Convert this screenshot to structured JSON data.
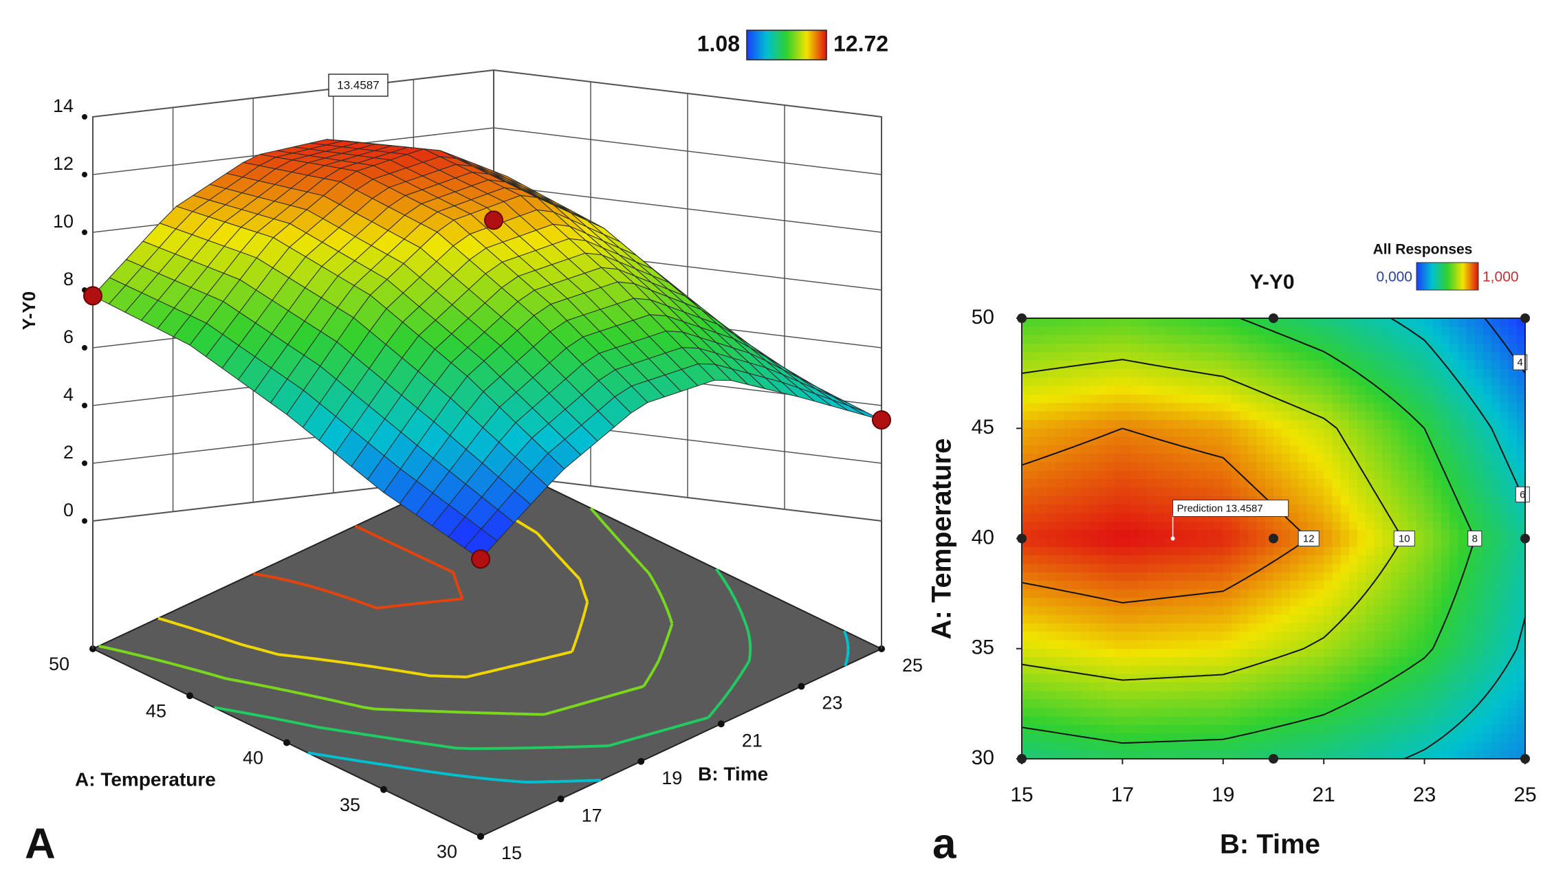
{
  "chart_data": [
    {
      "type": "surface3d",
      "panel": "A",
      "z_label": "Y-Y0",
      "x_label": "A: Temperature",
      "y_label": "B: Time",
      "xlim": [
        30,
        50
      ],
      "xticks": [
        30,
        35,
        40,
        45,
        50
      ],
      "ylim": [
        15,
        25
      ],
      "yticks": [
        15,
        17,
        19,
        21,
        23,
        25
      ],
      "zlim": [
        0,
        14
      ],
      "zticks": [
        0,
        2,
        4,
        6,
        8,
        10,
        12,
        14
      ],
      "colorbar": [
        1.08,
        12.72
      ],
      "annotation": "13.4587",
      "grid": true,
      "surface": {
        "temperature": [
          30,
          35,
          40,
          45,
          50
        ],
        "time": [
          15,
          17,
          19,
          21,
          23,
          25
        ],
        "z": [
          [
            0.3,
            3.0,
            5.0,
            5.6,
            4.6,
            3.5
          ],
          [
            2.2,
            5.8,
            8.0,
            8.6,
            7.2,
            4.8
          ],
          [
            4.5,
            8.2,
            10.5,
            11.2,
            9.6,
            6.5
          ],
          [
            6.5,
            9.8,
            11.8,
            12.4,
            11.0,
            8.0
          ],
          [
            7.8,
            10.5,
            12.0,
            12.3,
            11.2,
            8.8
          ]
        ]
      }
    },
    {
      "type": "contour",
      "panel": "a",
      "title": "Y-Y0",
      "x_label": "B: Time",
      "y_label": "A: Temperature",
      "xlim": [
        15,
        25
      ],
      "xticks": [
        15,
        17,
        19,
        21,
        23,
        25
      ],
      "ylim": [
        30,
        50
      ],
      "yticks": [
        30,
        35,
        40,
        45,
        50
      ],
      "legend": {
        "title": "All Responses",
        "low": "0,000",
        "high": "1,000"
      },
      "contour_levels": [
        4,
        6,
        8,
        10,
        12
      ],
      "prediction": {
        "label": "Prediction 13.4587",
        "x": 18,
        "y": 40
      },
      "design_points": {
        "x": [
          15,
          20,
          25,
          15,
          20,
          25,
          15,
          20,
          25
        ],
        "y": [
          30,
          30,
          30,
          40,
          40,
          40,
          50,
          50,
          50
        ]
      },
      "surface": {
        "temperature": [
          30,
          35,
          40,
          45,
          50
        ],
        "time": [
          15,
          17,
          19,
          21,
          23,
          25
        ],
        "z": [
          [
            7.0,
            7.5,
            7.4,
            6.8,
            5.8,
            4.5
          ],
          [
            10.5,
            11.0,
            10.8,
            9.8,
            8.2,
            5.8
          ],
          [
            13.0,
            13.4,
            13.1,
            11.8,
            9.5,
            6.5
          ],
          [
            11.5,
            12.0,
            11.6,
            10.3,
            8.0,
            5.0
          ],
          [
            8.5,
            8.8,
            8.2,
            7.0,
            5.5,
            3.0
          ]
        ]
      }
    }
  ]
}
